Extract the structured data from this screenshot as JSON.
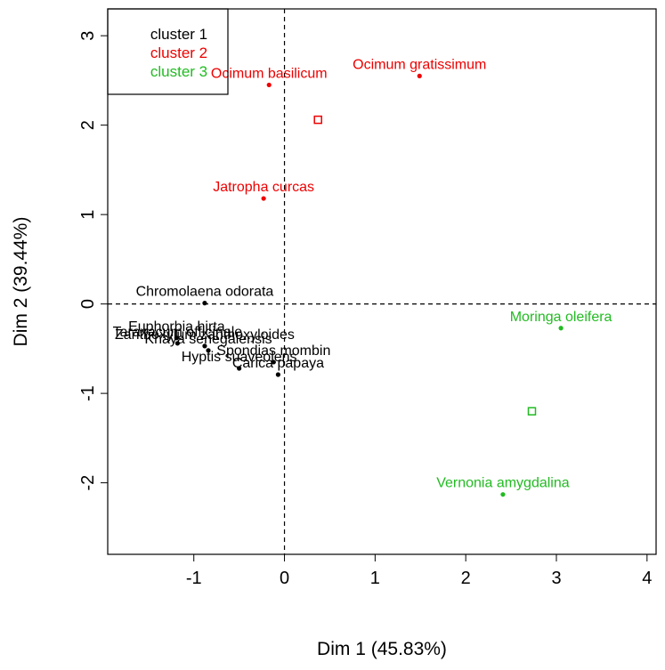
{
  "chart_data": {
    "type": "scatter",
    "title": "",
    "xlabel": "Dim 1 (45.83%)",
    "ylabel": "Dim 2 (39.44%)",
    "xlim": [
      -1.95,
      4.1
    ],
    "ylim": [
      -2.8,
      3.3
    ],
    "x_ticks": [
      -1,
      0,
      1,
      2,
      3,
      4
    ],
    "y_ticks": [
      -2,
      -1,
      0,
      1,
      2,
      3
    ],
    "reference_lines": {
      "x": 0,
      "y": 0,
      "style": "dashed"
    },
    "grid": false,
    "legend_position": "top-left",
    "series": [
      {
        "name": "cluster 1",
        "color": "#000000",
        "points": [
          {
            "label": "Chromolaena odorata",
            "x": -0.88,
            "y": 0.01
          },
          {
            "label": "Euphorbia hirta",
            "x": -1.19,
            "y": -0.38
          },
          {
            "label": "Taraxacum officinale",
            "x": -1.18,
            "y": -0.44
          },
          {
            "label": "Zanthoxylum zanthoxyloides",
            "x": -0.88,
            "y": -0.47
          },
          {
            "label": "Khaya senegalensis",
            "x": -0.84,
            "y": -0.52
          },
          {
            "label": "Spondias mombin",
            "x": -0.12,
            "y": -0.65
          },
          {
            "label": "Hyptis suaveolens",
            "x": -0.5,
            "y": -0.72
          },
          {
            "label": "Carica papaya",
            "x": -0.07,
            "y": -0.79
          }
        ]
      },
      {
        "name": "cluster 2",
        "color": "#ee0000",
        "points": [
          {
            "label": "Ocimum basilicum",
            "x": -0.17,
            "y": 2.45
          },
          {
            "label": "Ocimum gratissimum",
            "x": 1.49,
            "y": 2.55
          },
          {
            "label": "Jatropha curcas",
            "x": -0.23,
            "y": 1.18
          }
        ],
        "centroid": {
          "x": 0.37,
          "y": 2.06
        }
      },
      {
        "name": "cluster 3",
        "color": "#22bb22",
        "points": [
          {
            "label": "Moringa oleifera",
            "x": 3.05,
            "y": -0.27
          },
          {
            "label": "Vernonia amygdalina",
            "x": 2.41,
            "y": -2.13
          }
        ],
        "centroid": {
          "x": 2.73,
          "y": -1.2
        }
      }
    ],
    "legend": [
      {
        "label": "cluster 1",
        "color": "#000000"
      },
      {
        "label": "cluster 2",
        "color": "#ee0000"
      },
      {
        "label": "cluster 3",
        "color": "#22bb22"
      }
    ]
  }
}
